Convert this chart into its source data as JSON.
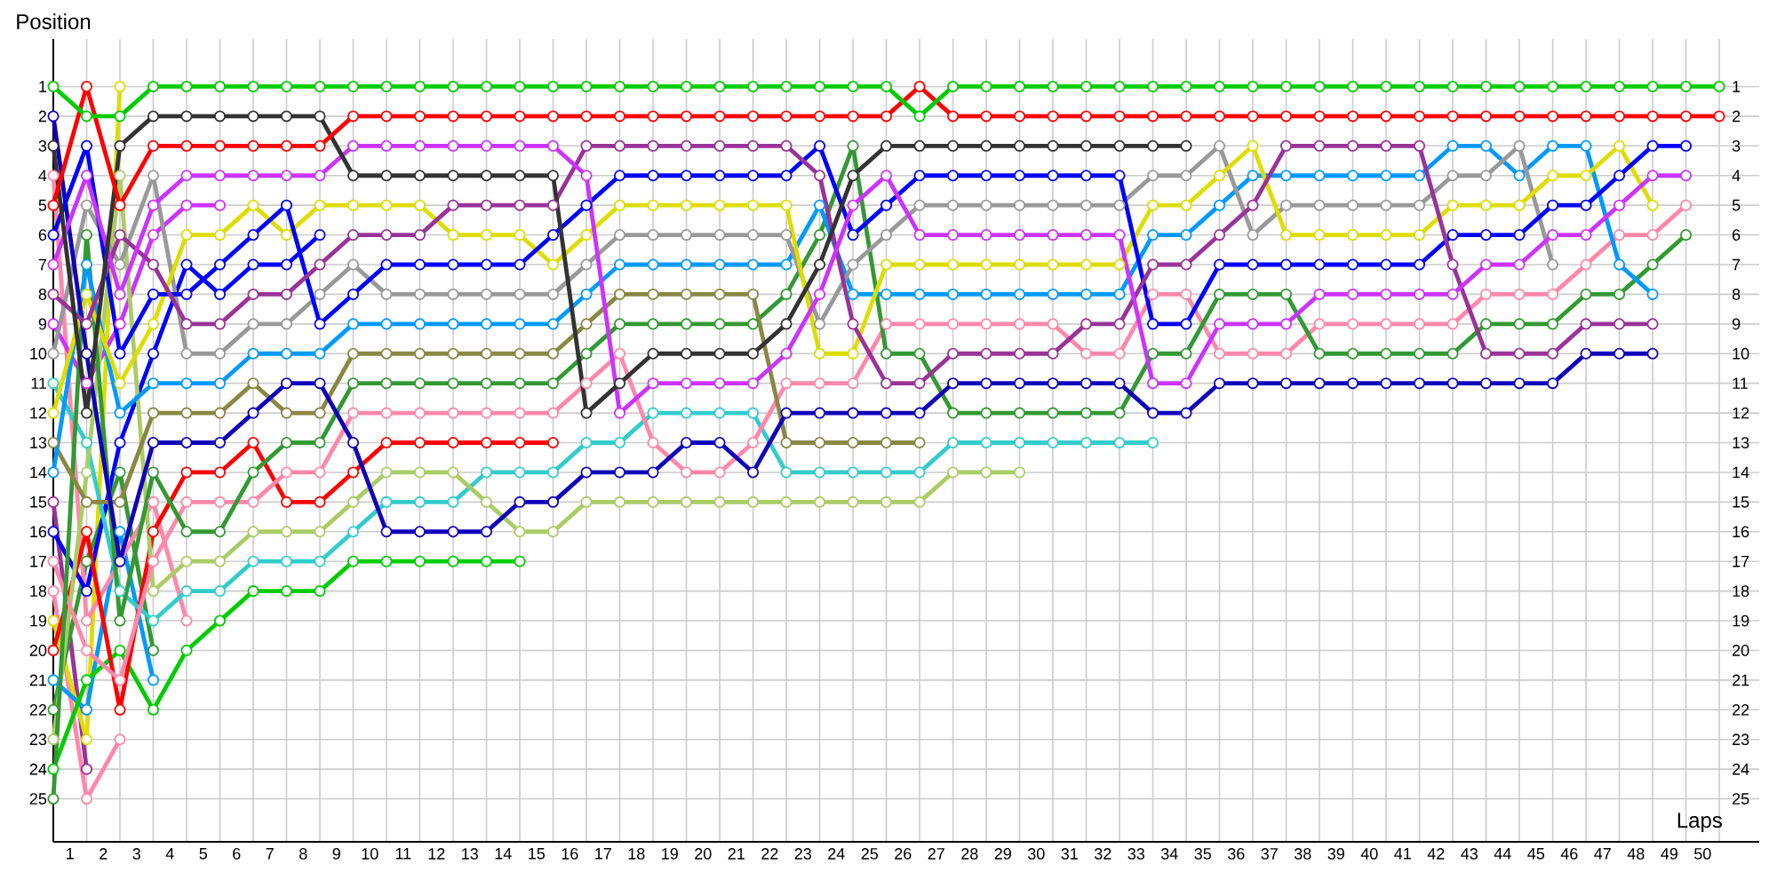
{
  "chart_data": {
    "type": "line",
    "xlabel": "Laps",
    "ylabel": "Position",
    "x": [
      0,
      1,
      2,
      3,
      4,
      5,
      6,
      7,
      8,
      9,
      10,
      11,
      12,
      13,
      14,
      15,
      16,
      17,
      18,
      19,
      20,
      21,
      22,
      23,
      24,
      25,
      26,
      27,
      28,
      29,
      30,
      31,
      32,
      33,
      34,
      35,
      36,
      37,
      38,
      39,
      40,
      41,
      42,
      43,
      44,
      45,
      46,
      47,
      48,
      49,
      50
    ],
    "xlim": [
      0,
      51.2
    ],
    "ylim": [
      26.45,
      -0.6
    ],
    "y2lim": [
      26.45,
      -0.6
    ],
    "xticks": [
      {
        "value": 0.5,
        "label": "1"
      },
      {
        "value": 1.5,
        "label": "2"
      },
      {
        "value": 2.5,
        "label": "3"
      },
      {
        "value": 3.5,
        "label": "4"
      },
      {
        "value": 4.5,
        "label": "5"
      },
      {
        "value": 5.5,
        "label": "6"
      },
      {
        "value": 6.5,
        "label": "7"
      },
      {
        "value": 7.5,
        "label": "8"
      },
      {
        "value": 8.5,
        "label": "9"
      },
      {
        "value": 9.5,
        "label": "10"
      },
      {
        "value": 10.5,
        "label": "11"
      },
      {
        "value": 11.5,
        "label": "12"
      },
      {
        "value": 12.5,
        "label": "13"
      },
      {
        "value": 13.5,
        "label": "14"
      },
      {
        "value": 14.5,
        "label": "15"
      },
      {
        "value": 15.5,
        "label": "16"
      },
      {
        "value": 16.5,
        "label": "17"
      },
      {
        "value": 17.5,
        "label": "18"
      },
      {
        "value": 18.5,
        "label": "19"
      },
      {
        "value": 19.5,
        "label": "20"
      },
      {
        "value": 20.5,
        "label": "21"
      },
      {
        "value": 21.5,
        "label": "22"
      },
      {
        "value": 22.5,
        "label": "23"
      },
      {
        "value": 23.5,
        "label": "24"
      },
      {
        "value": 24.5,
        "label": "25"
      },
      {
        "value": 25.5,
        "label": "26"
      },
      {
        "value": 26.5,
        "label": "27"
      },
      {
        "value": 27.5,
        "label": "28"
      },
      {
        "value": 28.5,
        "label": "29"
      },
      {
        "value": 29.5,
        "label": "30"
      },
      {
        "value": 30.5,
        "label": "31"
      },
      {
        "value": 31.5,
        "label": "32"
      },
      {
        "value": 32.5,
        "label": "33"
      },
      {
        "value": 33.5,
        "label": "34"
      },
      {
        "value": 34.5,
        "label": "35"
      },
      {
        "value": 35.5,
        "label": "36"
      },
      {
        "value": 36.5,
        "label": "37"
      },
      {
        "value": 37.5,
        "label": "38"
      },
      {
        "value": 38.5,
        "label": "39"
      },
      {
        "value": 39.5,
        "label": "40"
      },
      {
        "value": 40.5,
        "label": "41"
      },
      {
        "value": 41.5,
        "label": "42"
      },
      {
        "value": 42.5,
        "label": "43"
      },
      {
        "value": 43.5,
        "label": "44"
      },
      {
        "value": 44.5,
        "label": "45"
      },
      {
        "value": 45.5,
        "label": "46"
      },
      {
        "value": 46.5,
        "label": "47"
      },
      {
        "value": 47.5,
        "label": "48"
      },
      {
        "value": 48.5,
        "label": "49"
      },
      {
        "value": 49.5,
        "label": "50"
      }
    ],
    "yticks": [
      1,
      2,
      3,
      4,
      5,
      6,
      7,
      8,
      9,
      10,
      11,
      12,
      13,
      14,
      15,
      16,
      17,
      18,
      19,
      20,
      21,
      22,
      23,
      24,
      25
    ],
    "y2ticks": [
      1,
      2,
      3,
      4,
      5,
      6,
      7,
      8,
      9,
      10,
      11,
      12,
      13,
      14,
      15,
      16,
      17,
      18,
      19,
      20,
      21,
      22,
      23,
      24,
      25
    ],
    "grid": true,
    "marker": "circle",
    "series": [
      {
        "color": "#00cc00",
        "values": [
          1,
          2,
          2,
          1,
          1,
          1,
          1,
          1,
          1,
          1,
          1,
          1,
          1,
          1,
          1,
          1,
          1,
          1,
          1,
          1,
          1,
          1,
          1,
          1,
          1,
          1,
          2,
          1,
          1,
          1,
          1,
          1,
          1,
          1,
          1,
          1,
          1,
          1,
          1,
          1,
          1,
          1,
          1,
          1,
          1,
          1,
          1,
          1,
          1,
          1,
          1
        ]
      },
      {
        "color": "#ff0000",
        "values": [
          5,
          1,
          5,
          3,
          3,
          3,
          3,
          3,
          3,
          2,
          2,
          2,
          2,
          2,
          2,
          2,
          2,
          2,
          2,
          2,
          2,
          2,
          2,
          2,
          2,
          2,
          1,
          2,
          2,
          2,
          2,
          2,
          2,
          2,
          2,
          2,
          2,
          2,
          2,
          2,
          2,
          2,
          2,
          2,
          2,
          2,
          2,
          2,
          2,
          2,
          2
        ]
      },
      {
        "color": "#333333",
        "values": [
          3,
          12,
          3,
          2,
          2,
          2,
          2,
          2,
          2,
          4,
          4,
          4,
          4,
          4,
          4,
          4,
          12,
          11,
          10,
          10,
          10,
          10,
          9,
          7,
          4,
          3,
          3,
          3,
          3,
          3,
          3,
          3,
          3,
          3,
          3,
          null,
          null,
          null,
          null,
          null,
          null,
          null,
          null,
          null,
          null,
          null,
          null,
          null,
          null,
          null,
          null
        ]
      },
      {
        "color": "#cc33ff",
        "values": [
          7,
          4,
          8,
          5,
          4,
          4,
          4,
          4,
          4,
          3,
          3,
          3,
          3,
          3,
          3,
          3,
          4,
          12,
          11,
          11,
          11,
          11,
          10,
          8,
          5,
          4,
          6,
          6,
          6,
          6,
          6,
          6,
          6,
          11,
          11,
          9,
          9,
          9,
          8,
          8,
          8,
          8,
          8,
          7,
          7,
          6,
          6,
          5,
          4,
          4,
          null
        ]
      },
      {
        "color": "#993399",
        "values": [
          8,
          9,
          6,
          7,
          9,
          9,
          8,
          8,
          7,
          6,
          6,
          6,
          5,
          5,
          5,
          5,
          3,
          3,
          3,
          3,
          3,
          3,
          3,
          4,
          9,
          11,
          11,
          10,
          10,
          10,
          10,
          9,
          9,
          7,
          7,
          6,
          5,
          3,
          3,
          3,
          3,
          3,
          7,
          10,
          10,
          10,
          9,
          9,
          9,
          null,
          null
        ]
      },
      {
        "color": "#0000ff",
        "values": [
          6,
          3,
          10,
          8,
          8,
          7,
          6,
          5,
          9,
          8,
          7,
          7,
          7,
          7,
          7,
          6,
          5,
          4,
          4,
          4,
          4,
          4,
          4,
          3,
          6,
          5,
          4,
          4,
          4,
          4,
          4,
          4,
          4,
          9,
          9,
          7,
          7,
          7,
          7,
          7,
          7,
          7,
          6,
          6,
          6,
          5,
          5,
          4,
          3,
          3,
          null
        ]
      },
      {
        "color": "#1100bb",
        "values": [
          2,
          10,
          17,
          13,
          13,
          13,
          12,
          11,
          11,
          13,
          16,
          16,
          16,
          16,
          15,
          15,
          14,
          14,
          14,
          13,
          13,
          14,
          12,
          12,
          12,
          12,
          12,
          11,
          11,
          11,
          11,
          11,
          11,
          12,
          12,
          11,
          11,
          11,
          11,
          11,
          11,
          11,
          11,
          11,
          11,
          11,
          10,
          10,
          10,
          null,
          null
        ]
      },
      {
        "color": "#dddd00",
        "values": [
          12,
          8,
          11,
          9,
          6,
          6,
          5,
          6,
          5,
          5,
          5,
          5,
          6,
          6,
          6,
          7,
          6,
          5,
          5,
          5,
          5,
          5,
          5,
          10,
          10,
          7,
          7,
          7,
          7,
          7,
          7,
          7,
          7,
          5,
          5,
          4,
          3,
          6,
          6,
          6,
          6,
          6,
          5,
          5,
          5,
          4,
          4,
          3,
          5,
          null,
          null
        ]
      },
      {
        "color": "#999999",
        "values": [
          10,
          5,
          7,
          4,
          10,
          10,
          9,
          9,
          8,
          7,
          8,
          8,
          8,
          8,
          8,
          8,
          7,
          6,
          6,
          6,
          6,
          6,
          6,
          9,
          7,
          6,
          5,
          5,
          5,
          5,
          5,
          5,
          5,
          4,
          4,
          3,
          6,
          5,
          5,
          5,
          5,
          5,
          4,
          4,
          3,
          7,
          null,
          null,
          null,
          null,
          null
        ]
      },
      {
        "color": "#0099ff",
        "values": [
          14,
          7,
          12,
          11,
          11,
          11,
          10,
          10,
          10,
          9,
          9,
          9,
          9,
          9,
          9,
          9,
          8,
          7,
          7,
          7,
          7,
          7,
          7,
          5,
          8,
          8,
          8,
          8,
          8,
          8,
          8,
          8,
          8,
          6,
          6,
          5,
          4,
          4,
          4,
          4,
          4,
          4,
          3,
          3,
          4,
          3,
          3,
          7,
          8,
          null,
          null
        ]
      },
      {
        "color": "#888844",
        "values": [
          13,
          15,
          15,
          12,
          12,
          12,
          11,
          12,
          12,
          10,
          10,
          10,
          10,
          10,
          10,
          10,
          9,
          8,
          8,
          8,
          8,
          8,
          13,
          13,
          13,
          13,
          13,
          null,
          null,
          null,
          null,
          null,
          null,
          null,
          null,
          null,
          null,
          null,
          null,
          null,
          null,
          null,
          null,
          null,
          null,
          null,
          null,
          null,
          null,
          null,
          null
        ]
      },
      {
        "color": "#339933",
        "values": [
          25,
          6,
          19,
          14,
          16,
          16,
          14,
          13,
          13,
          11,
          11,
          11,
          11,
          11,
          11,
          11,
          10,
          9,
          9,
          9,
          9,
          9,
          8,
          6,
          3,
          10,
          10,
          12,
          12,
          12,
          12,
          12,
          12,
          10,
          10,
          8,
          8,
          8,
          10,
          10,
          10,
          10,
          10,
          9,
          9,
          9,
          8,
          8,
          7,
          6,
          null
        ]
      },
      {
        "color": "#ff88aa",
        "values": [
          17,
          20,
          21,
          17,
          15,
          15,
          15,
          14,
          14,
          12,
          12,
          12,
          12,
          12,
          12,
          12,
          11,
          10,
          13,
          14,
          14,
          13,
          11,
          11,
          11,
          9,
          9,
          9,
          9,
          9,
          9,
          10,
          10,
          8,
          8,
          10,
          10,
          10,
          9,
          9,
          9,
          9,
          9,
          8,
          8,
          8,
          7,
          6,
          6,
          5,
          null
        ]
      },
      {
        "color": "#aacc66",
        "values": [
          23,
          14,
          4,
          18,
          17,
          17,
          16,
          16,
          16,
          15,
          14,
          14,
          14,
          15,
          16,
          16,
          15,
          15,
          15,
          15,
          15,
          15,
          15,
          15,
          15,
          15,
          15,
          14,
          14,
          14,
          null,
          null,
          null,
          null,
          null,
          null,
          null,
          null,
          null,
          null,
          null,
          null,
          null,
          null,
          null,
          null,
          null,
          null,
          null,
          null,
          null
        ]
      },
      {
        "color": "#33cccc",
        "values": [
          11,
          13,
          18,
          19,
          18,
          18,
          17,
          17,
          17,
          16,
          15,
          15,
          15,
          14,
          14,
          14,
          13,
          13,
          12,
          12,
          12,
          12,
          14,
          14,
          14,
          14,
          14,
          13,
          13,
          13,
          13,
          13,
          13,
          13,
          null,
          null,
          null,
          null,
          null,
          null,
          null,
          null,
          null,
          null,
          null,
          null,
          null,
          null,
          null,
          null,
          null
        ]
      },
      {
        "color": "#ff0000",
        "values": [
          20,
          16,
          22,
          16,
          14,
          14,
          13,
          15,
          15,
          14,
          13,
          13,
          13,
          13,
          13,
          13,
          null,
          null,
          null,
          null,
          null,
          null,
          null,
          null,
          null,
          null,
          null,
          null,
          null,
          null,
          null,
          null,
          null,
          null,
          null,
          null,
          null,
          null,
          null,
          null,
          null,
          null,
          null,
          null,
          null,
          null,
          null,
          null,
          null,
          null,
          null
        ]
      },
      {
        "color": "#00cc00",
        "values": [
          24,
          21,
          20,
          22,
          20,
          19,
          18,
          18,
          18,
          17,
          17,
          17,
          17,
          17,
          17,
          null,
          null,
          null,
          null,
          null,
          null,
          null,
          null,
          null,
          null,
          null,
          null,
          null,
          null,
          null,
          null,
          null,
          null,
          null,
          null,
          null,
          null,
          null,
          null,
          null,
          null,
          null,
          null,
          null,
          null,
          null,
          null,
          null,
          null,
          null,
          null
        ]
      },
      {
        "color": "#0000ff",
        "values": [
          16,
          18,
          13,
          10,
          7,
          8,
          7,
          7,
          6,
          null,
          null,
          null,
          null,
          null,
          null,
          null,
          null,
          null,
          null,
          null,
          null,
          null,
          null,
          null,
          null,
          null,
          null,
          null,
          null,
          null,
          null,
          null,
          null,
          null,
          null,
          null,
          null,
          null,
          null,
          null,
          null,
          null,
          null,
          null,
          null,
          null,
          null,
          null,
          null,
          null,
          null
        ]
      },
      {
        "color": "#cc33ff",
        "values": [
          9,
          11,
          9,
          6,
          5,
          5,
          null,
          null,
          null,
          null,
          null,
          null,
          null,
          null,
          null,
          null,
          null,
          null,
          null,
          null,
          null,
          null,
          null,
          null,
          null,
          null,
          null,
          null,
          null,
          null,
          null,
          null,
          null,
          null,
          null,
          null,
          null,
          null,
          null,
          null,
          null,
          null,
          null,
          null,
          null,
          null,
          null,
          null,
          null,
          null,
          null
        ]
      },
      {
        "color": "#ff88aa",
        "values": [
          4,
          19,
          17,
          15,
          19,
          null,
          null,
          null,
          null,
          null,
          null,
          null,
          null,
          null,
          null,
          null,
          null,
          null,
          null,
          null,
          null,
          null,
          null,
          null,
          null,
          null,
          null,
          null,
          null,
          null,
          null,
          null,
          null,
          null,
          null,
          null,
          null,
          null,
          null,
          null,
          null,
          null,
          null,
          null,
          null,
          null,
          null,
          null,
          null,
          null,
          null
        ]
      },
      {
        "color": "#0099ff",
        "values": [
          21,
          22,
          16,
          21,
          null,
          null,
          null,
          null,
          null,
          null,
          null,
          null,
          null,
          null,
          null,
          null,
          null,
          null,
          null,
          null,
          null,
          null,
          null,
          null,
          null,
          null,
          null,
          null,
          null,
          null,
          null,
          null,
          null,
          null,
          null,
          null,
          null,
          null,
          null,
          null,
          null,
          null,
          null,
          null,
          null,
          null,
          null,
          null,
          null,
          null,
          null
        ]
      },
      {
        "color": "#339933",
        "values": [
          22,
          17,
          14,
          20,
          null,
          null,
          null,
          null,
          null,
          null,
          null,
          null,
          null,
          null,
          null,
          null,
          null,
          null,
          null,
          null,
          null,
          null,
          null,
          null,
          null,
          null,
          null,
          null,
          null,
          null,
          null,
          null,
          null,
          null,
          null,
          null,
          null,
          null,
          null,
          null,
          null,
          null,
          null,
          null,
          null,
          null,
          null,
          null,
          null,
          null,
          null
        ]
      },
      {
        "color": "#dddd00",
        "values": [
          19,
          23,
          1,
          null,
          null,
          null,
          null,
          null,
          null,
          null,
          null,
          null,
          null,
          null,
          null,
          null,
          null,
          null,
          null,
          null,
          null,
          null,
          null,
          null,
          null,
          null,
          null,
          null,
          null,
          null,
          null,
          null,
          null,
          null,
          null,
          null,
          null,
          null,
          null,
          null,
          null,
          null,
          null,
          null,
          null,
          null,
          null,
          null,
          null,
          null,
          null
        ]
      },
      {
        "color": "#993399",
        "values": [
          15,
          24,
          null,
          null,
          null,
          null,
          null,
          null,
          null,
          null,
          null,
          null,
          null,
          null,
          null,
          null,
          null,
          null,
          null,
          null,
          null,
          null,
          null,
          null,
          null,
          null,
          null,
          null,
          null,
          null,
          null,
          null,
          null,
          null,
          null,
          null,
          null,
          null,
          null,
          null,
          null,
          null,
          null,
          null,
          null,
          null,
          null,
          null,
          null,
          null,
          null
        ]
      },
      {
        "color": "#ff88aa",
        "values": [
          18,
          25,
          23,
          null,
          null,
          null,
          null,
          null,
          null,
          null,
          null,
          null,
          null,
          null,
          null,
          null,
          null,
          null,
          null,
          null,
          null,
          null,
          null,
          null,
          null,
          null,
          null,
          null,
          null,
          null,
          null,
          null,
          null,
          null,
          null,
          null,
          null,
          null,
          null,
          null,
          null,
          null,
          null,
          null,
          null,
          null,
          null,
          null,
          null,
          null,
          null
        ]
      }
    ]
  }
}
